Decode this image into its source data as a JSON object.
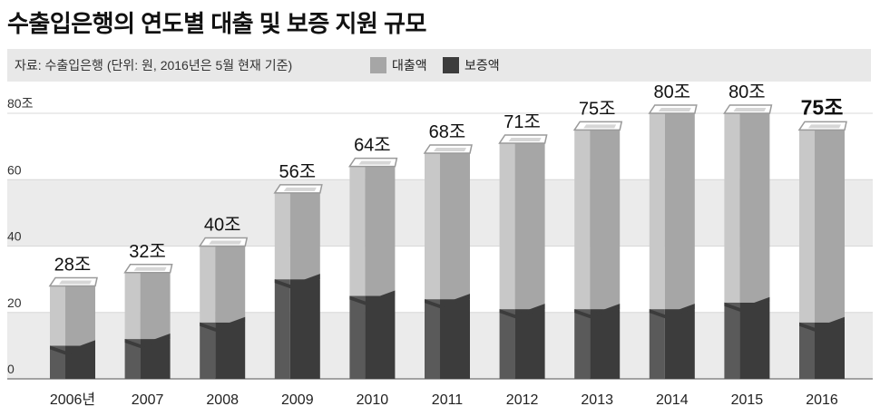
{
  "title": "수출입은행의 연도별 대출 및 보증 지원 규모",
  "source": "자료: 수출입은행 (단위: 원, 2016년은 5월 현재 기준)",
  "colors": {
    "loan": "#a6a6a6",
    "loan_light": "#c8c8c8",
    "guarantee": "#3c3c3c",
    "guarantee_light": "#5a5a5a",
    "band": "#ebebeb",
    "top": "#ffffff"
  },
  "chart_data": {
    "type": "bar",
    "stacked": true,
    "categories": [
      "2006년",
      "2007",
      "2008",
      "2009",
      "2010",
      "2011",
      "2012",
      "2013",
      "2014",
      "2015",
      "2016"
    ],
    "series": [
      {
        "name": "보증액",
        "values": [
          10,
          12,
          17,
          30,
          25,
          24,
          21,
          21,
          21,
          23,
          17
        ]
      },
      {
        "name": "대출액",
        "values": [
          18,
          20,
          23,
          26,
          39,
          44,
          50,
          54,
          59,
          57,
          58
        ]
      }
    ],
    "totals": [
      "28조",
      "32조",
      "40조",
      "56조",
      "64조",
      "68조",
      "71조",
      "75조",
      "80조",
      "80조",
      "75조"
    ],
    "total_values": [
      28,
      32,
      40,
      56,
      64,
      68,
      71,
      75,
      80,
      80,
      75
    ],
    "yticks": [
      {
        "value": 80,
        "label": "80조"
      },
      {
        "value": 60,
        "label": "60"
      },
      {
        "value": 40,
        "label": "40"
      },
      {
        "value": 20,
        "label": "20"
      },
      {
        "value": 0,
        "label": "0"
      }
    ],
    "ylim": [
      0,
      80
    ],
    "legend_position": "top-left"
  }
}
